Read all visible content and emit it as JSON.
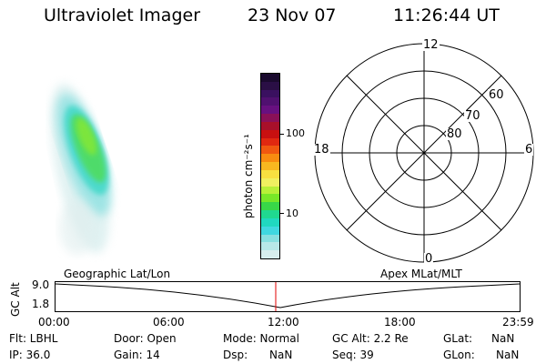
{
  "header": {
    "instrument": "Ultraviolet Imager",
    "date": "23 Nov 07",
    "time": "11:26:44 UT"
  },
  "colorbar": {
    "unit_label": "photon cm⁻²s⁻¹",
    "ticks": [
      "100",
      "10"
    ],
    "colors": [
      "#1a0a2e",
      "#2a0f45",
      "#3a1060",
      "#501070",
      "#681080",
      "#8a1058",
      "#a8102a",
      "#c81010",
      "#e02810",
      "#f05810",
      "#f88c10",
      "#f8b820",
      "#f8e040",
      "#f0f060",
      "#b8f038",
      "#78e828",
      "#38d848",
      "#20d890",
      "#20d8c0",
      "#40d8e0",
      "#88e0e0",
      "#b8e8e8",
      "#d8eeee"
    ]
  },
  "polar": {
    "labels_mlt": [
      "12",
      "18",
      "6",
      "0"
    ],
    "labels_lat": [
      "60",
      "70",
      "80"
    ]
  },
  "timeline": {
    "left_title": "Geographic Lat/Lon",
    "right_title": "Apex MLat/MLT",
    "y_axis_label": "GC Alt",
    "y_ticks": [
      "9.0",
      "1.8"
    ],
    "x_ticks": [
      "00:00",
      "06:00",
      "12:00",
      "18:00",
      "23:59"
    ]
  },
  "info": {
    "row1": {
      "flt": "Flt: LBHL",
      "door": "Door: Open",
      "mode": "Mode: Normal",
      "gcalt": "GC Alt: 2.2 Re",
      "glat_label": "GLat:",
      "glat_val": "NaN"
    },
    "row2": {
      "ip": "IP: 36.0",
      "gain": "Gain: 14",
      "dsp_label": "Dsp:",
      "dsp_val": "NaN",
      "seq": "Seq: 39",
      "glon_label": "GLon:",
      "glon_val": "NaN"
    }
  }
}
